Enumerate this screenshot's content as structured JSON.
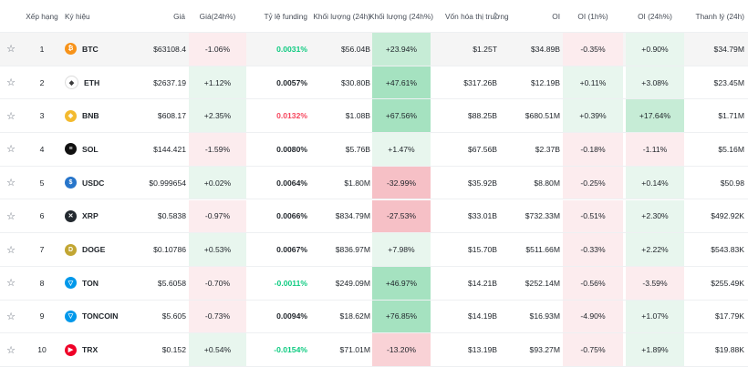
{
  "headers": {
    "rank": "Xếp hạng",
    "symbol": "Ký hiệu",
    "price": "Giá",
    "price_change": "Giá(24h%)",
    "funding": "Tỷ lệ funding",
    "volume": "Khối lượng (24h)",
    "volume_change": "Khối lượng (24h%)",
    "market_cap": "Vốn hóa thị trường",
    "oi": "OI",
    "oi_1h": "OI (1h%)",
    "oi_24h": "OI (24h%)",
    "liquidation": "Thanh lý (24h)"
  },
  "rows": [
    {
      "rank": "1",
      "symbol": "BTC",
      "icon": "btc-icon",
      "icon_color": "#f7931a",
      "icon_glyph": "₿",
      "price": "$63108.4",
      "price_change": "-1.06%",
      "funding": "0.0031%",
      "funding_color": "green",
      "volume": "$56.04B",
      "volume_change": "+23.94%",
      "market_cap": "$1.25T",
      "oi": "$34.89B",
      "oi_1h": "-0.35%",
      "oi_24h": "+0.90%",
      "liquidation": "$34.79M"
    },
    {
      "rank": "2",
      "symbol": "ETH",
      "icon": "eth-icon",
      "icon_color": "#ffffff",
      "icon_glyph": "◆",
      "price": "$2637.19",
      "price_change": "+1.12%",
      "funding": "0.0057%",
      "funding_color": "black",
      "volume": "$30.80B",
      "volume_change": "+47.61%",
      "market_cap": "$317.26B",
      "oi": "$12.19B",
      "oi_1h": "+0.11%",
      "oi_24h": "+3.08%",
      "liquidation": "$23.45M"
    },
    {
      "rank": "3",
      "symbol": "BNB",
      "icon": "bnb-icon",
      "icon_color": "#f3ba2f",
      "icon_glyph": "◈",
      "price": "$608.17",
      "price_change": "+2.35%",
      "funding": "0.0132%",
      "funding_color": "red",
      "volume": "$1.08B",
      "volume_change": "+67.56%",
      "market_cap": "$88.25B",
      "oi": "$680.51M",
      "oi_1h": "+0.39%",
      "oi_24h": "+17.64%",
      "liquidation": "$1.71M"
    },
    {
      "rank": "4",
      "symbol": "SOL",
      "icon": "sol-icon",
      "icon_color": "#111111",
      "icon_glyph": "≡",
      "price": "$144.421",
      "price_change": "-1.59%",
      "funding": "0.0080%",
      "funding_color": "black",
      "volume": "$5.76B",
      "volume_change": "+1.47%",
      "market_cap": "$67.56B",
      "oi": "$2.37B",
      "oi_1h": "-0.18%",
      "oi_24h": "-1.11%",
      "liquidation": "$5.16M"
    },
    {
      "rank": "5",
      "symbol": "USDC",
      "icon": "usdc-icon",
      "icon_color": "#2775ca",
      "icon_glyph": "$",
      "price": "$0.999654",
      "price_change": "+0.02%",
      "funding": "0.0064%",
      "funding_color": "black",
      "volume": "$1.80M",
      "volume_change": "-32.99%",
      "market_cap": "$35.92B",
      "oi": "$8.80M",
      "oi_1h": "-0.25%",
      "oi_24h": "+0.14%",
      "liquidation": "$50.98"
    },
    {
      "rank": "6",
      "symbol": "XRP",
      "icon": "xrp-icon",
      "icon_color": "#23292f",
      "icon_glyph": "✕",
      "price": "$0.5838",
      "price_change": "-0.97%",
      "funding": "0.0066%",
      "funding_color": "black",
      "volume": "$834.79M",
      "volume_change": "-27.53%",
      "market_cap": "$33.01B",
      "oi": "$732.33M",
      "oi_1h": "-0.51%",
      "oi_24h": "+2.30%",
      "liquidation": "$492.92K"
    },
    {
      "rank": "7",
      "symbol": "DOGE",
      "icon": "doge-icon",
      "icon_color": "#c2a633",
      "icon_glyph": "D",
      "price": "$0.10786",
      "price_change": "+0.53%",
      "funding": "0.0067%",
      "funding_color": "black",
      "volume": "$836.97M",
      "volume_change": "+7.98%",
      "market_cap": "$15.70B",
      "oi": "$511.66M",
      "oi_1h": "-0.33%",
      "oi_24h": "+2.22%",
      "liquidation": "$543.83K"
    },
    {
      "rank": "8",
      "symbol": "TON",
      "icon": "ton-icon",
      "icon_color": "#0098ea",
      "icon_glyph": "▽",
      "price": "$5.6058",
      "price_change": "-0.70%",
      "funding": "-0.0011%",
      "funding_color": "green",
      "volume": "$249.09M",
      "volume_change": "+46.97%",
      "market_cap": "$14.21B",
      "oi": "$252.14M",
      "oi_1h": "-0.56%",
      "oi_24h": "-3.59%",
      "liquidation": "$255.49K"
    },
    {
      "rank": "9",
      "symbol": "TONCOIN",
      "icon": "toncoin-icon",
      "icon_color": "#0098ea",
      "icon_glyph": "▽",
      "price": "$5.605",
      "price_change": "-0.73%",
      "funding": "0.0094%",
      "funding_color": "black",
      "volume": "$18.62M",
      "volume_change": "+76.85%",
      "market_cap": "$14.19B",
      "oi": "$16.93M",
      "oi_1h": "-4.90%",
      "oi_24h": "+1.07%",
      "liquidation": "$17.79K"
    },
    {
      "rank": "10",
      "symbol": "TRX",
      "icon": "trx-icon",
      "icon_color": "#ef0027",
      "icon_glyph": "▶",
      "price": "$0.152",
      "price_change": "+0.54%",
      "funding": "-0.0154%",
      "funding_color": "green",
      "volume": "$71.01M",
      "volume_change": "-13.20%",
      "market_cap": "$13.19B",
      "oi": "$93.27M",
      "oi_1h": "-0.75%",
      "oi_24h": "+1.89%",
      "liquidation": "$19.88K"
    }
  ],
  "colors": {
    "green_bg_light": "#e8f6ee",
    "green_bg_mid": "#c6ecd6",
    "green_bg_strong": "#a5e2c0",
    "red_bg_light": "#fcecee",
    "red_bg_mid": "#f9d2d6",
    "red_bg_strong": "#f6c0c6"
  }
}
